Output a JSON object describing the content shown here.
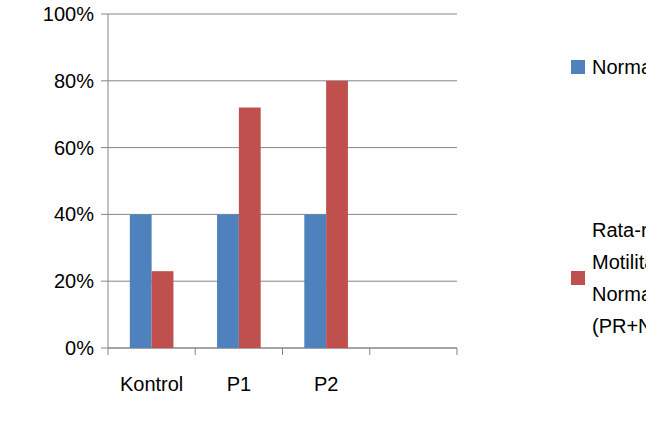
{
  "chart_data": {
    "type": "bar",
    "categories": [
      "Kontrol",
      "P1",
      "P2",
      null
    ],
    "series": [
      {
        "name": "Normal",
        "color": "#4f81bd",
        "values": [
          40,
          40,
          40,
          null
        ]
      },
      {
        "name": "Rata-rata Motilitas Normal (PR+NP)",
        "color": "#c0504d",
        "values": [
          23,
          72,
          80,
          null
        ]
      }
    ],
    "ylim": [
      0,
      100
    ],
    "yticks": [
      {
        "value": 0,
        "label": "0%"
      },
      {
        "value": 20,
        "label": "20%"
      },
      {
        "value": 40,
        "label": "40%"
      },
      {
        "value": 60,
        "label": "60%"
      },
      {
        "value": 80,
        "label": "80%"
      },
      {
        "value": 100,
        "label": "100%"
      }
    ],
    "grid": true,
    "legend": "right"
  }
}
